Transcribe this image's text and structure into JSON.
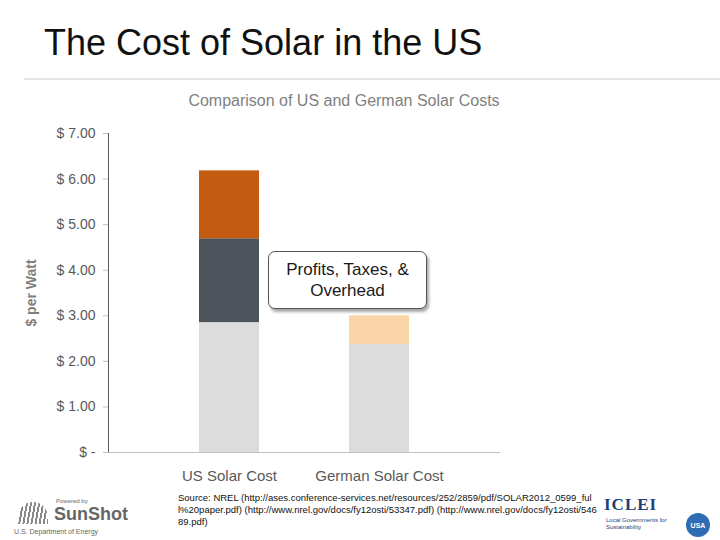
{
  "slide_title": "The Cost of Solar in the US",
  "chart_data": {
    "type": "bar",
    "stacked": true,
    "title": "Comparison of US and German Solar Costs",
    "y_label": "$ per Watt",
    "categories": [
      "US Solar Cost",
      "German Solar Cost"
    ],
    "series": [
      {
        "colors": [
          "#dcdcdc",
          "#dcdcdc"
        ],
        "values": [
          2.85,
          2.37
        ]
      },
      {
        "colors": [
          "#4d535b",
          "#fad5a7"
        ],
        "values": [
          1.84,
          0.63
        ]
      },
      {
        "colors": [
          "#c55a11",
          "#c55a11"
        ],
        "values": [
          1.49,
          null
        ]
      }
    ],
    "ylim": [
      0,
      7
    ],
    "yticks": [
      {
        "value": 0,
        "label": "$ -"
      },
      {
        "value": 1,
        "label": "$ 1.00"
      },
      {
        "value": 2,
        "label": "$ 2.00"
      },
      {
        "value": 3,
        "label": "$ 3.00"
      },
      {
        "value": 4,
        "label": "$ 4.00"
      },
      {
        "value": 5,
        "label": "$ 5.00"
      },
      {
        "value": 6,
        "label": "$ 6.00"
      },
      {
        "value": 7,
        "label": "$ 7.00"
      }
    ],
    "grid": false,
    "annotation": "Profits, Taxes, & Overhead"
  },
  "source": "Source: NREL (http://ases.conference-services.net/resources/252/2859/pdf/SOLAR2012_0599_full%20paper.pdf) (http://www.nrel.gov/docs/fy12osti/53347.pdf) (http://www.nrel.gov/docs/fy12osti/54689.pdf)",
  "logos": {
    "left": [
      "Powered by",
      "SunShot",
      "U.S. Department of Energy"
    ],
    "right": [
      "ICLEI",
      "Local Governments for Sustainability",
      "USA"
    ]
  }
}
